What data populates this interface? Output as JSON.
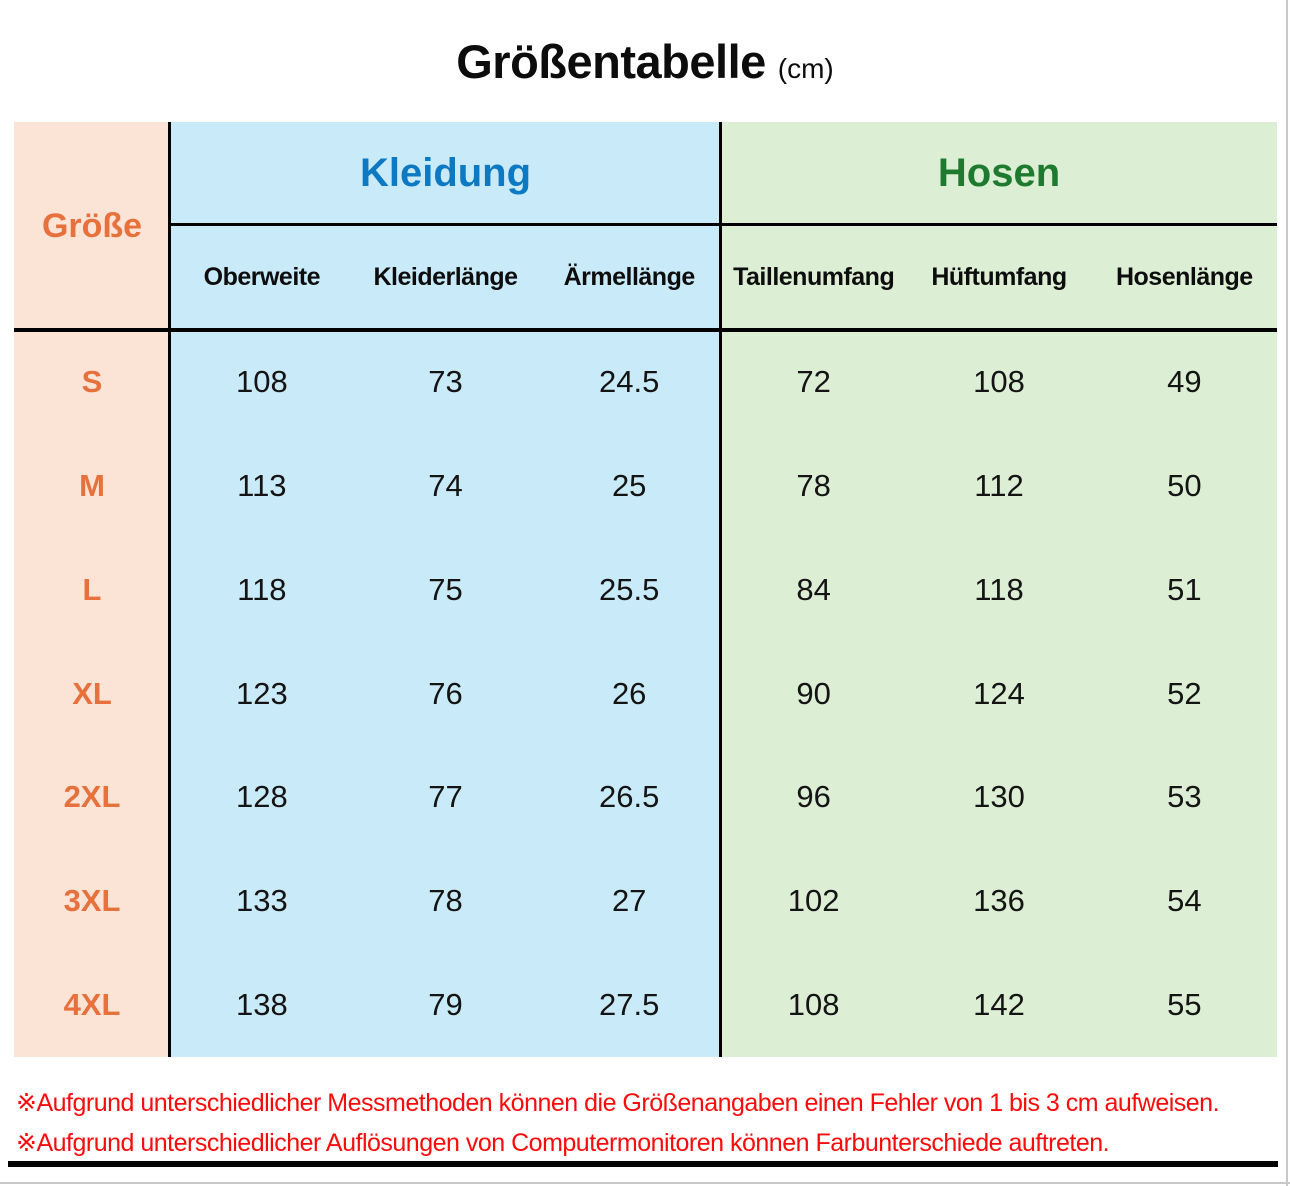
{
  "title": {
    "text": "Größentabelle",
    "unit": "(cm)"
  },
  "table": {
    "corner_label": "Größe",
    "groups": [
      {
        "label": "Kleidung",
        "columns": [
          "Oberweite",
          "Kleiderlänge",
          "Ärmellänge"
        ]
      },
      {
        "label": "Hosen",
        "columns": [
          "Taillenumfang",
          "Hüftumfang",
          "Hosenlänge"
        ]
      }
    ],
    "rows": [
      {
        "size": "S",
        "values": [
          "108",
          "73",
          "24.5",
          "72",
          "108",
          "49"
        ]
      },
      {
        "size": "M",
        "values": [
          "113",
          "74",
          "25",
          "78",
          "112",
          "50"
        ]
      },
      {
        "size": "L",
        "values": [
          "118",
          "75",
          "25.5",
          "84",
          "118",
          "51"
        ]
      },
      {
        "size": "XL",
        "values": [
          "123",
          "76",
          "26",
          "90",
          "124",
          "52"
        ]
      },
      {
        "size": "2XL",
        "values": [
          "128",
          "77",
          "26.5",
          "96",
          "130",
          "53"
        ]
      },
      {
        "size": "3XL",
        "values": [
          "133",
          "78",
          "27",
          "102",
          "136",
          "54"
        ]
      },
      {
        "size": "4XL",
        "values": [
          "138",
          "79",
          "27.5",
          "108",
          "142",
          "55"
        ]
      }
    ]
  },
  "notes": [
    "※Aufgrund unterschiedlicher Messmethoden können die Größenangaben einen Fehler von 1 bis 3 cm aufweisen.",
    "※Aufgrund unterschiedlicher Auflösungen von Computermonitoren können Farbunterschiede auftreten."
  ],
  "colors": {
    "size_column_bg": "#fbe3d5",
    "size_text": "#e7713d",
    "kleidung_bg": "#c9eaf9",
    "kleidung_text": "#0d79c2",
    "hosen_bg": "#dceed3",
    "hosen_text": "#1e7a2f",
    "note_text": "#fb0b0b",
    "grid_line": "#000000"
  },
  "chart_data": {
    "type": "table",
    "title": "Größentabelle (cm)",
    "unit": "cm",
    "column_groups": [
      {
        "name": "Größe",
        "columns": [
          "Größe"
        ]
      },
      {
        "name": "Kleidung",
        "columns": [
          "Oberweite",
          "Kleiderlänge",
          "Ärmellänge"
        ]
      },
      {
        "name": "Hosen",
        "columns": [
          "Taillenumfang",
          "Hüftumfang",
          "Hosenlänge"
        ]
      }
    ],
    "columns": [
      "Größe",
      "Oberweite",
      "Kleiderlänge",
      "Ärmellänge",
      "Taillenumfang",
      "Hüftumfang",
      "Hosenlänge"
    ],
    "rows": [
      [
        "S",
        108,
        73,
        24.5,
        72,
        108,
        49
      ],
      [
        "M",
        113,
        74,
        25,
        78,
        112,
        50
      ],
      [
        "L",
        118,
        75,
        25.5,
        84,
        118,
        51
      ],
      [
        "XL",
        123,
        76,
        26,
        90,
        124,
        52
      ],
      [
        "2XL",
        128,
        77,
        26.5,
        96,
        130,
        53
      ],
      [
        "3XL",
        133,
        78,
        27,
        102,
        136,
        54
      ],
      [
        "4XL",
        138,
        79,
        27.5,
        108,
        142,
        55
      ]
    ],
    "notes": [
      "※Aufgrund unterschiedlicher Messmethoden können die Größenangaben einen Fehler von 1 bis 3 cm aufweisen.",
      "※Aufgrund unterschiedlicher Auflösungen von Computermonitoren können Farbunterschiede auftreten."
    ]
  }
}
